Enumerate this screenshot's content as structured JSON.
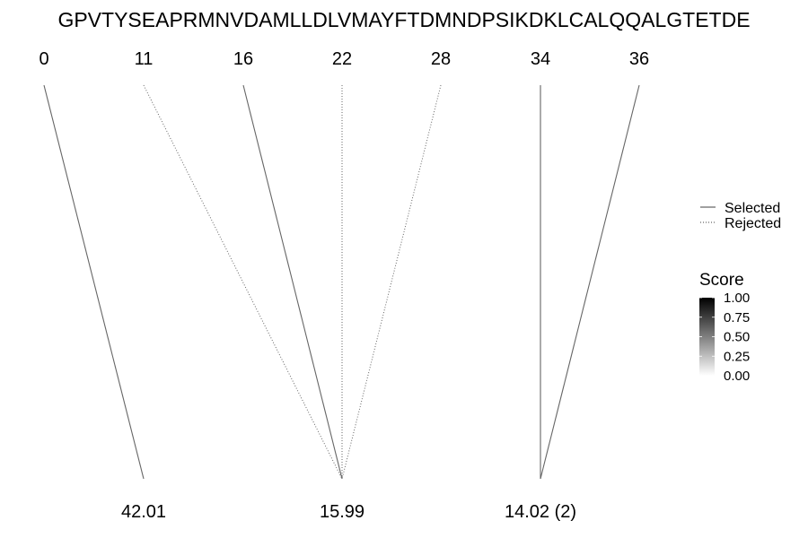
{
  "chart_data": {
    "type": "line",
    "sequence": "GPVTYSEAPRMNVDAMLLDLVMAYFTDMNDPSIKDKLCALQQALGTETDE",
    "top_positions": [
      "0",
      "11",
      "16",
      "22",
      "28",
      "34",
      "36"
    ],
    "bottom_labels": [
      "42.01",
      "15.99",
      "14.02 (2)"
    ],
    "connections": [
      {
        "from": 0,
        "to": 0,
        "status": "Selected"
      },
      {
        "from": 1,
        "to": 1,
        "status": "Rejected"
      },
      {
        "from": 2,
        "to": 1,
        "status": "Selected"
      },
      {
        "from": 3,
        "to": 1,
        "status": "Rejected"
      },
      {
        "from": 4,
        "to": 1,
        "status": "Rejected"
      },
      {
        "from": 5,
        "to": 2,
        "status": "Selected"
      },
      {
        "from": 6,
        "to": 2,
        "status": "Selected"
      }
    ],
    "legend": {
      "line_types": [
        {
          "label": "Selected",
          "style": "solid"
        },
        {
          "label": "Rejected",
          "style": "dotted"
        }
      ],
      "score": {
        "title": "Score",
        "ticks": [
          "1.00",
          "0.75",
          "0.50",
          "0.25",
          "0.00"
        ],
        "range": [
          0,
          1
        ],
        "colors": {
          "high": "#000000",
          "low": "#ffffff"
        }
      },
      "placement": "right"
    },
    "colors": {
      "line": "#666666",
      "text": "#000000",
      "background": "#ffffff"
    }
  }
}
